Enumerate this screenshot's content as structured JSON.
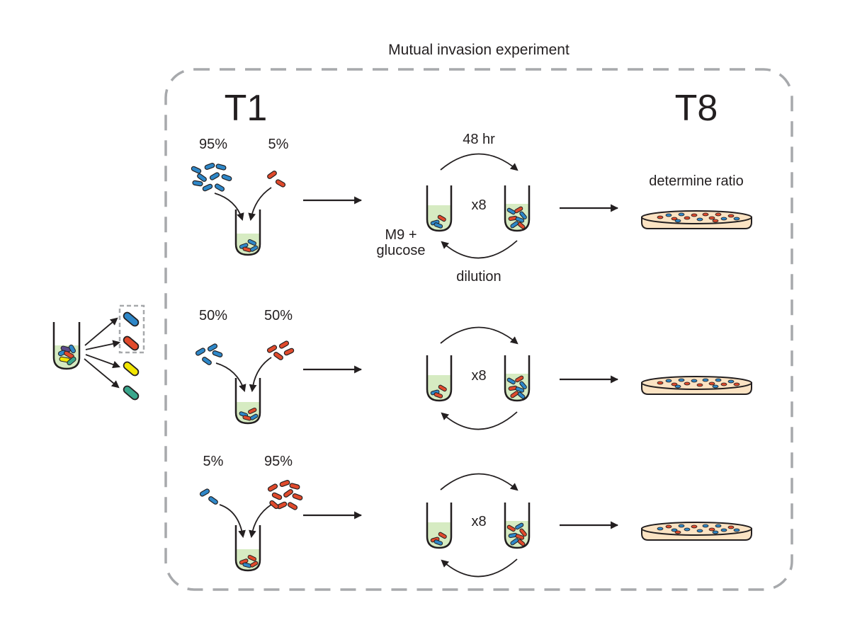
{
  "title": "Mutual invasion experiment",
  "time_start": "T1",
  "time_end": "T8",
  "cycle_duration": "48 hr",
  "medium": [
    "M9 +",
    "glucose"
  ],
  "dilution": "dilution",
  "measure": "determine ratio",
  "transfers": "x8",
  "rows": [
    {
      "blue_pct": "95%",
      "red_pct": "5%"
    },
    {
      "blue_pct": "50%",
      "red_pct": "50%"
    },
    {
      "blue_pct": "5%",
      "red_pct": "95%"
    }
  ],
  "colors": {
    "strain_a": "#2e87c8",
    "strain_b": "#e04a2c",
    "strain_c": "#f2e600",
    "strain_d": "#3aa68c",
    "extra": "#5b4b8a",
    "medium": "#d6ebc2",
    "agar": "#fbe3c3",
    "outline": "#231f20",
    "dashed_box": "#a7a9ac"
  }
}
